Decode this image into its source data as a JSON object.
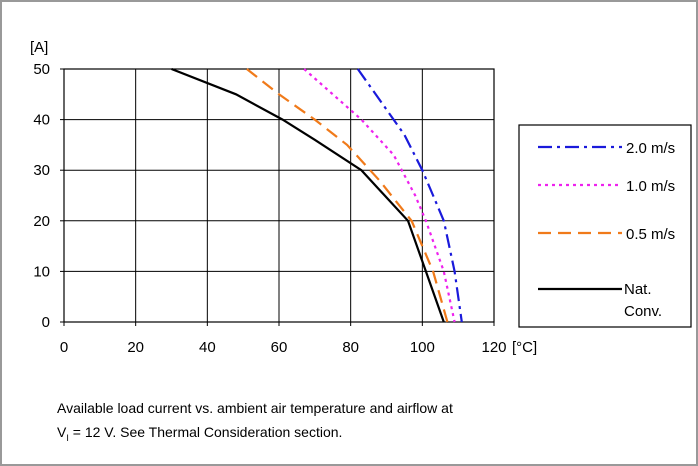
{
  "chart_data": {
    "type": "line",
    "ylabel": "[A]",
    "xunit": "[°C]",
    "xlim": [
      0,
      120
    ],
    "ylim": [
      0,
      50
    ],
    "xticks": [
      "0",
      "20",
      "40",
      "60",
      "80",
      "100",
      "120"
    ],
    "yticks": [
      "0",
      "10",
      "20",
      "30",
      "40",
      "50"
    ],
    "grid": true,
    "legend_position": "right",
    "series": [
      {
        "name": "2.0 m/s",
        "color": "#1a1adb",
        "dash": "dashdot",
        "points": [
          [
            82,
            50
          ],
          [
            88,
            44
          ],
          [
            95,
            37
          ],
          [
            100,
            30
          ],
          [
            103,
            25
          ],
          [
            106,
            20
          ],
          [
            109,
            10
          ],
          [
            111,
            0
          ]
        ]
      },
      {
        "name": "1.0 m/s",
        "color": "#ee22ee",
        "dash": "dotted",
        "points": [
          [
            67,
            50
          ],
          [
            75,
            45
          ],
          [
            83,
            40
          ],
          [
            92,
            33
          ],
          [
            98,
            25
          ],
          [
            101,
            20
          ],
          [
            106,
            10
          ],
          [
            109,
            0
          ]
        ]
      },
      {
        "name": "0.5 m/s",
        "color": "#f07a1a",
        "dash": "dashed",
        "points": [
          [
            51,
            50
          ],
          [
            60,
            45
          ],
          [
            70,
            40
          ],
          [
            79,
            35
          ],
          [
            88,
            28
          ],
          [
            97,
            20
          ],
          [
            103,
            10
          ],
          [
            107,
            0
          ]
        ]
      },
      {
        "name": "Nat.\nConv.",
        "name_lines": [
          "Nat.",
          "Conv."
        ],
        "color": "#000000",
        "dash": "solid",
        "points": [
          [
            30,
            50
          ],
          [
            48,
            45
          ],
          [
            61,
            40
          ],
          [
            70,
            36
          ],
          [
            83,
            30
          ],
          [
            96,
            20
          ],
          [
            101,
            10
          ],
          [
            106,
            0
          ]
        ]
      }
    ]
  },
  "caption": {
    "line1": "Available load current vs. ambient air temperature and airflow at",
    "line2_prefix": "V",
    "line2_sub": "I",
    "line2_rest": " = 12 V. See Thermal Consideration section."
  }
}
